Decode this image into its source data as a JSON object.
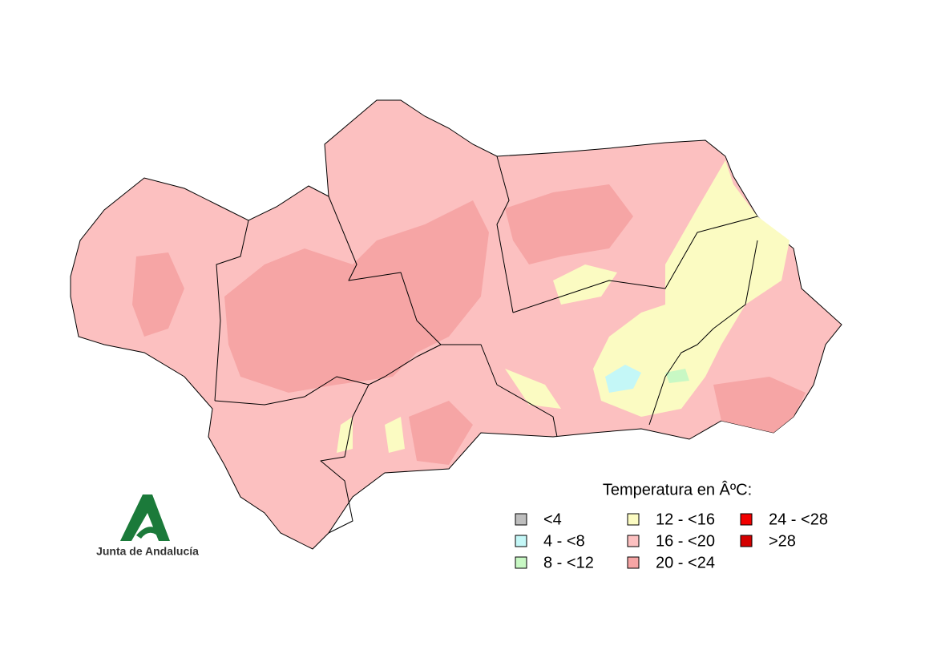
{
  "map": {
    "legend": {
      "title": "Temperatura en ÂºC:",
      "items": [
        {
          "label": "<4",
          "color": "#bebebe"
        },
        {
          "label": "4 - <8",
          "color": "#c4f7f7"
        },
        {
          "label": "8 - <12",
          "color": "#c8f8c4"
        },
        {
          "label": "12 - <16",
          "color": "#fbfbc2"
        },
        {
          "label": "16 - <20",
          "color": "#fcc0c0"
        },
        {
          "label": "20 - <24",
          "color": "#f6a5a5"
        },
        {
          "label": "24 - <28",
          "color": "#f20000"
        },
        {
          "label": ">28",
          "color": "#d40000"
        }
      ]
    }
  },
  "logo": {
    "text": "Junta de Andalucía"
  }
}
